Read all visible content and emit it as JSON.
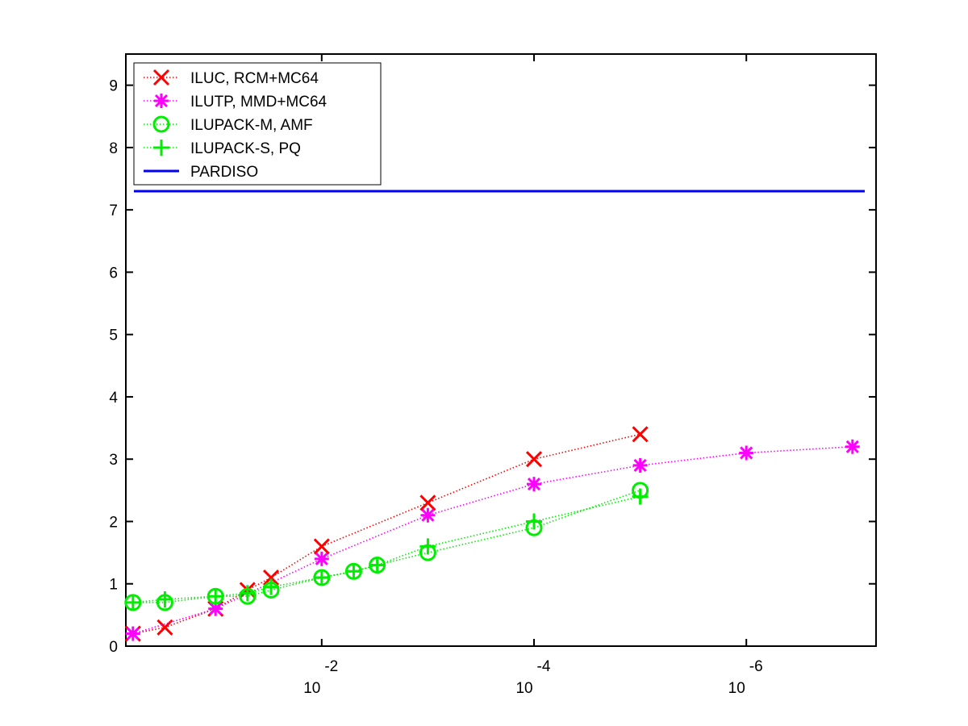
{
  "chart_data": {
    "type": "line",
    "title": "",
    "xlabel": "",
    "ylabel": "",
    "x_scale": "log-reversed",
    "xlim": [
      0.7,
      6e-08
    ],
    "ylim": [
      0,
      9.5
    ],
    "yticks": [
      0,
      1,
      2,
      3,
      4,
      5,
      6,
      7,
      8,
      9
    ],
    "xticks": [
      {
        "value": 0.01,
        "base": "10",
        "exponent": "-2"
      },
      {
        "value": 0.0001,
        "base": "10",
        "exponent": "-4"
      },
      {
        "value": 1e-06,
        "base": "10",
        "exponent": "-6"
      }
    ],
    "grid": false,
    "legend_position": "top-left",
    "series": [
      {
        "name": "ILUC, RCM+MC64",
        "color": "#ff0000",
        "marker": "x",
        "line_style": "dotted",
        "x": [
          0.6,
          0.3,
          0.1,
          0.05,
          0.03,
          0.01,
          0.001,
          0.0001,
          1e-05
        ],
        "y": [
          0.2,
          0.3,
          0.6,
          0.9,
          1.1,
          1.6,
          2.3,
          3.0,
          3.4
        ]
      },
      {
        "name": "ILUTP, MMD+MC64",
        "color": "#ff00ff",
        "marker": "star",
        "line_style": "dotted",
        "x": [
          0.6,
          0.1,
          0.01,
          0.001,
          0.0001,
          1e-05,
          1e-06,
          1e-07
        ],
        "y": [
          0.2,
          0.6,
          1.4,
          2.1,
          2.6,
          2.9,
          3.1,
          3.2
        ]
      },
      {
        "name": "ILUPACK-M, AMF",
        "color": "#00ee00",
        "marker": "circle",
        "line_style": "dotted",
        "x": [
          0.6,
          0.3,
          0.1,
          0.05,
          0.03,
          0.01,
          0.005,
          0.003,
          0.001,
          0.0001,
          1e-05
        ],
        "y": [
          0.7,
          0.7,
          0.8,
          0.8,
          0.9,
          1.1,
          1.2,
          1.3,
          1.5,
          1.9,
          2.5
        ]
      },
      {
        "name": "ILUPACK-S, PQ",
        "color": "#00ee00",
        "marker": "plus",
        "line_style": "dotted",
        "x": [
          0.6,
          0.3,
          0.1,
          0.05,
          0.03,
          0.01,
          0.005,
          0.003,
          0.001,
          0.0001,
          1e-05
        ],
        "y": [
          0.7,
          0.75,
          0.8,
          0.85,
          0.95,
          1.1,
          1.2,
          1.3,
          1.6,
          2.0,
          2.4
        ]
      },
      {
        "name": "PARDISO",
        "color": "#0000ff",
        "marker": "none",
        "line_style": "solid",
        "constant_y": 7.3
      }
    ]
  }
}
